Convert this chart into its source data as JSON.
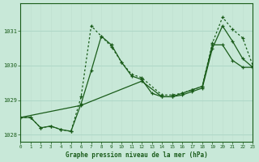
{
  "xlabel": "Graphe pression niveau de la mer (hPa)",
  "xlim": [
    0,
    23
  ],
  "ylim": [
    1027.8,
    1031.8
  ],
  "yticks": [
    1028,
    1029,
    1030,
    1031
  ],
  "xticks": [
    0,
    1,
    2,
    3,
    4,
    5,
    6,
    7,
    8,
    9,
    10,
    11,
    12,
    13,
    14,
    15,
    16,
    17,
    18,
    19,
    20,
    21,
    22,
    23
  ],
  "bg_color": "#c8e8d8",
  "grid_major_color": "#b0d8c8",
  "grid_minor_color": "#c0e0d0",
  "line_color": "#1a5c1a",
  "lines": [
    {
      "x": [
        0,
        1,
        2,
        3,
        4,
        5,
        6,
        7,
        8,
        9,
        10,
        11,
        12,
        14,
        15,
        16,
        17,
        18,
        19,
        20,
        21,
        22,
        23
      ],
      "y": [
        1028.5,
        1028.5,
        1028.2,
        1028.25,
        1028.15,
        1028.1,
        1029.1,
        1031.15,
        1030.85,
        1030.55,
        1030.1,
        1029.75,
        1029.65,
        1029.15,
        1029.15,
        1029.2,
        1029.3,
        1029.4,
        1030.65,
        1031.4,
        1031.05,
        1030.8,
        1030.0
      ],
      "style": "dotted",
      "marker": "+"
    },
    {
      "x": [
        0,
        1,
        2,
        3,
        4,
        5,
        6,
        7,
        8,
        9,
        10,
        11,
        12,
        13,
        14,
        15,
        16,
        17,
        18,
        19,
        20,
        21,
        22,
        23
      ],
      "y": [
        1028.5,
        1028.5,
        1028.2,
        1028.25,
        1028.15,
        1028.1,
        1028.9,
        1029.85,
        1030.85,
        1030.6,
        1030.1,
        1029.7,
        1029.6,
        1029.2,
        1029.1,
        1029.1,
        1029.15,
        1029.25,
        1029.35,
        1030.5,
        1031.15,
        1030.7,
        1030.2,
        1029.95
      ],
      "style": "-",
      "marker": "+"
    },
    {
      "x": [
        0,
        6,
        12,
        14,
        15,
        16,
        17,
        18,
        19,
        20,
        21,
        22,
        23
      ],
      "y": [
        1028.5,
        1028.85,
        1029.55,
        1029.1,
        1029.1,
        1029.2,
        1029.3,
        1029.4,
        1030.6,
        1030.6,
        1030.15,
        1029.95,
        1029.95
      ],
      "style": "-",
      "marker": "+"
    }
  ]
}
